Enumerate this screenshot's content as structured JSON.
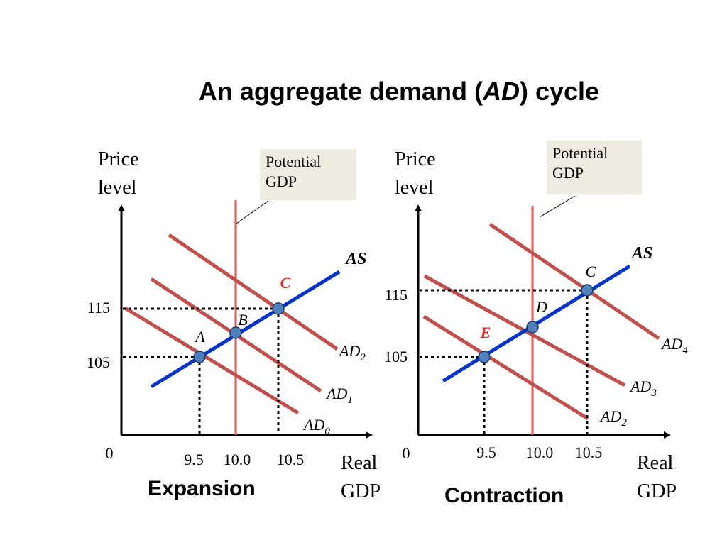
{
  "title": {
    "prefix": "An aggregate demand (",
    "italic": "AD",
    "suffix": ") cycle"
  },
  "chart_data": [
    {
      "type": "line",
      "caption": "Expansion",
      "xlabel": [
        "Real",
        "GDP"
      ],
      "ylabel": [
        "Price",
        "level"
      ],
      "origin_label": "0",
      "x_ticks": [
        "9.5",
        "10.0",
        "10.5"
      ],
      "y_ticks": [
        "105",
        "115"
      ],
      "potential_gdp_label": [
        "Potential",
        "GDP"
      ],
      "potential_gdp": 10.0,
      "as_label": "AS",
      "ad_curves": [
        {
          "name": "AD",
          "sub": "0"
        },
        {
          "name": "AD",
          "sub": "1"
        },
        {
          "name": "AD",
          "sub": "2"
        }
      ],
      "points": [
        {
          "label": "A",
          "x": 9.5,
          "y": 105,
          "highlight": false
        },
        {
          "label": "B",
          "x": 10.0,
          "y": 110,
          "highlight": false
        },
        {
          "label": "C",
          "x": 10.5,
          "y": 115,
          "highlight": true
        }
      ]
    },
    {
      "type": "line",
      "caption": "Contraction",
      "xlabel": [
        "Real",
        "GDP"
      ],
      "ylabel": [
        "Price",
        "level"
      ],
      "origin_label": "0",
      "x_ticks": [
        "9.5",
        "10.0",
        "10.5"
      ],
      "y_ticks": [
        "105",
        "115"
      ],
      "potential_gdp_label": [
        "Potential",
        "GDP"
      ],
      "potential_gdp": 10.0,
      "as_label": "AS",
      "ad_curves": [
        {
          "name": "AD",
          "sub": "2"
        },
        {
          "name": "AD",
          "sub": "3"
        },
        {
          "name": "AD",
          "sub": "4"
        }
      ],
      "points": [
        {
          "label": "C",
          "x": 10.5,
          "y": 115,
          "highlight": false
        },
        {
          "label": "D",
          "x": 10.0,
          "y": 110,
          "highlight": false
        },
        {
          "label": "E",
          "x": 9.5,
          "y": 105,
          "highlight": true
        }
      ]
    }
  ],
  "colors": {
    "as": "#0033cc",
    "ad": "#c0504d",
    "potential": "#e05a5a",
    "point_fill": "#4f81bd",
    "highlight_label": "#e03030",
    "box": "#eeece1"
  }
}
